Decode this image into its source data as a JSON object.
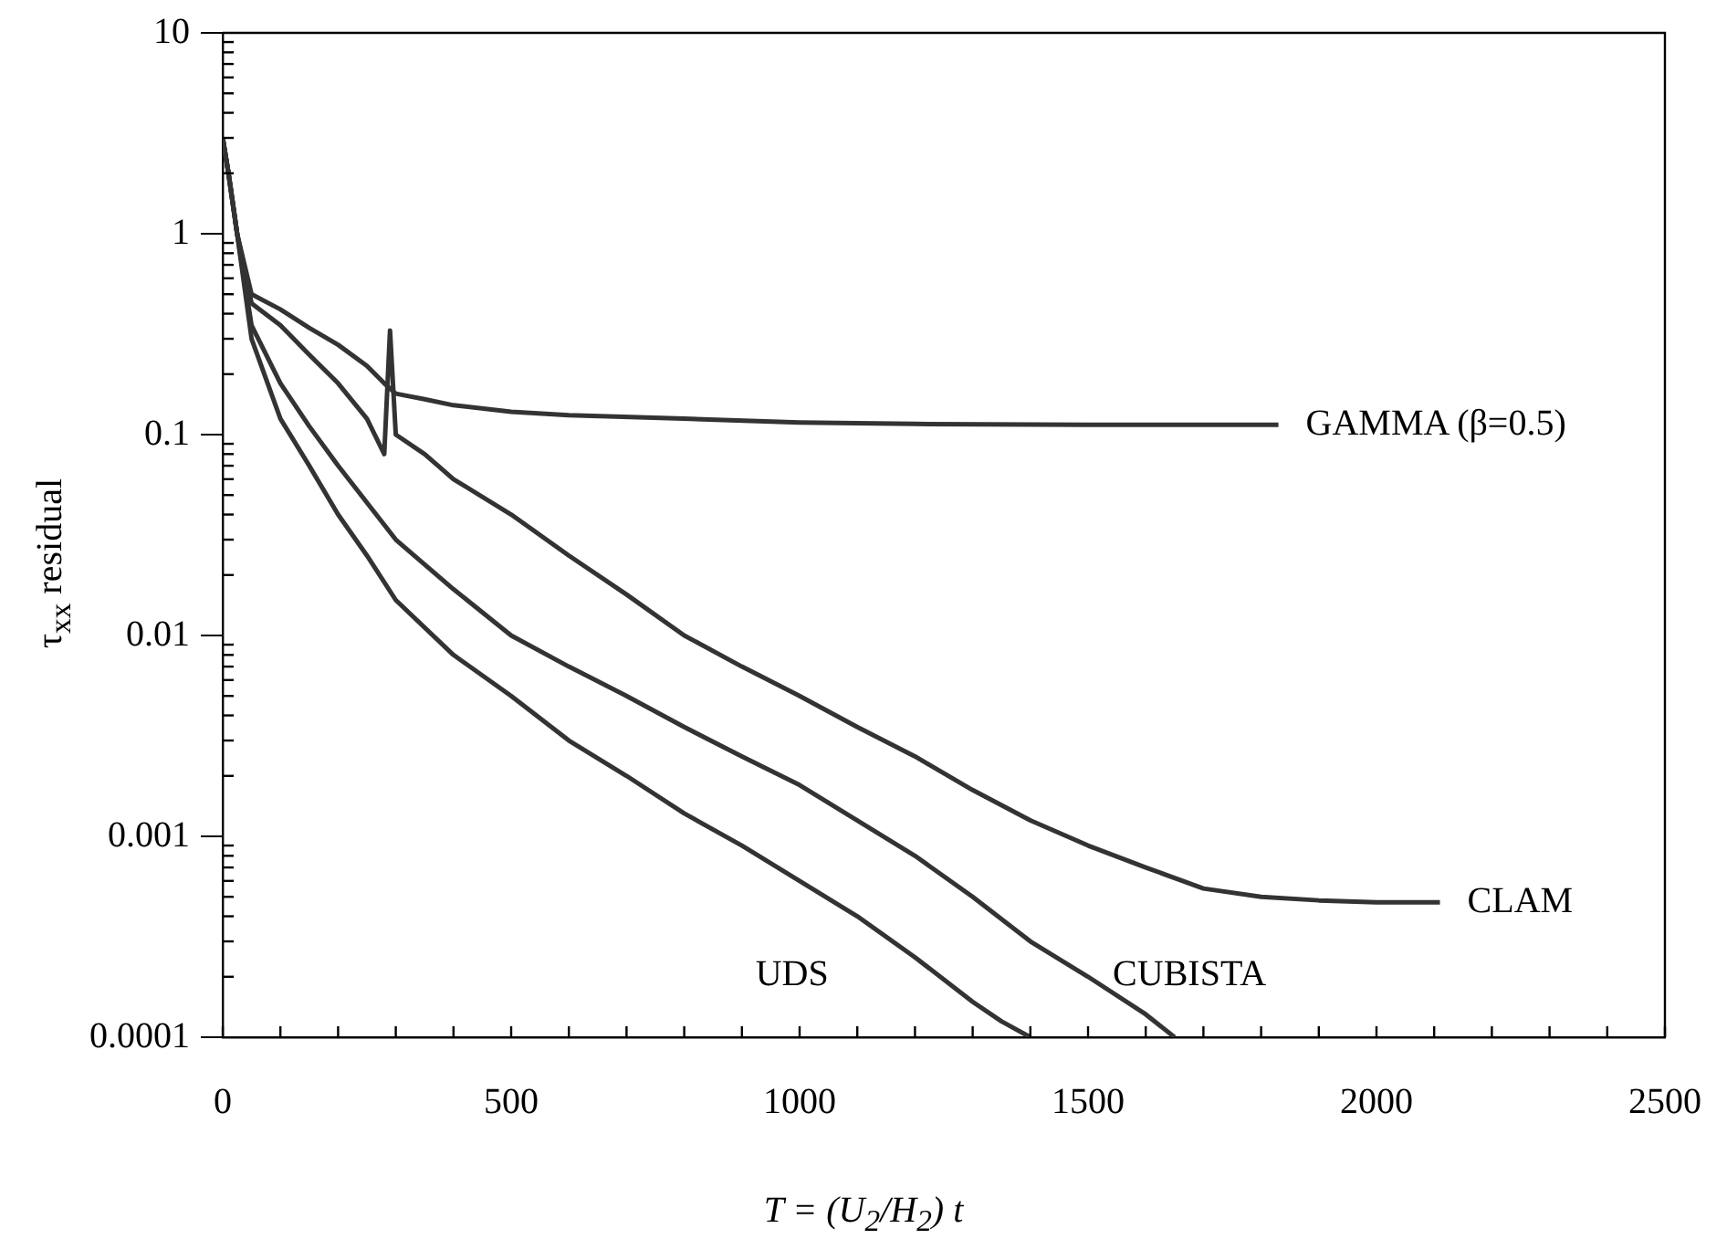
{
  "chart_data": {
    "type": "line",
    "xlabel": "T = (U$_{2}$/H$_{2}$) t",
    "ylabel": "τ$_{xx}$ residual",
    "log": "y",
    "xlim": [
      0,
      2500
    ],
    "xticks": [
      0,
      500,
      1000,
      1500,
      2000,
      2500
    ],
    "ylim": [
      0.0001,
      10
    ],
    "yticks": [
      0.0001,
      0.001,
      0.01,
      0.1,
      1,
      10
    ],
    "grid": false,
    "legend": false,
    "marker": "none",
    "line_style": "solid",
    "series": [
      {
        "name": "GAMMA (β=0.5)",
        "color": "#333333",
        "x": [
          0,
          10,
          25,
          50,
          100,
          150,
          200,
          250,
          280,
          300,
          350,
          400,
          500,
          600,
          800,
          1000,
          1200,
          1500,
          1830
        ],
        "values": [
          3,
          2,
          1,
          0.5,
          0.42,
          0.34,
          0.28,
          0.22,
          0.18,
          0.16,
          0.15,
          0.14,
          0.13,
          0.125,
          0.12,
          0.115,
          0.113,
          0.112,
          0.112
        ]
      },
      {
        "name": "CLAM",
        "color": "#333333",
        "x": [
          0,
          10,
          25,
          50,
          100,
          150,
          200,
          250,
          280,
          290,
          300,
          350,
          400,
          500,
          600,
          700,
          800,
          900,
          1000,
          1100,
          1200,
          1300,
          1400,
          1500,
          1600,
          1700,
          1800,
          1900,
          2000,
          2110
        ],
        "values": [
          3,
          2,
          1,
          0.45,
          0.35,
          0.25,
          0.18,
          0.12,
          0.08,
          0.33,
          0.1,
          0.08,
          0.06,
          0.04,
          0.025,
          0.016,
          0.01,
          0.007,
          0.005,
          0.0035,
          0.0025,
          0.0017,
          0.0012,
          0.0009,
          0.0007,
          0.00055,
          0.0005,
          0.00048,
          0.00047,
          0.00047
        ]
      },
      {
        "name": "CUBISTA",
        "color": "#333333",
        "x": [
          0,
          10,
          25,
          50,
          100,
          150,
          200,
          300,
          400,
          500,
          600,
          700,
          800,
          900,
          1000,
          1100,
          1200,
          1300,
          1400,
          1500,
          1600,
          1650
        ],
        "values": [
          3,
          2,
          1,
          0.35,
          0.18,
          0.11,
          0.07,
          0.03,
          0.017,
          0.01,
          0.007,
          0.005,
          0.0035,
          0.0025,
          0.0018,
          0.0012,
          0.0008,
          0.0005,
          0.0003,
          0.0002,
          0.00013,
          0.0001
        ]
      },
      {
        "name": "UDS",
        "color": "#333333",
        "x": [
          0,
          10,
          25,
          50,
          100,
          150,
          200,
          250,
          300,
          400,
          500,
          600,
          700,
          800,
          900,
          1000,
          1100,
          1200,
          1300,
          1350,
          1400
        ],
        "values": [
          3,
          2,
          1,
          0.3,
          0.12,
          0.07,
          0.04,
          0.025,
          0.015,
          0.008,
          0.005,
          0.003,
          0.002,
          0.0013,
          0.0009,
          0.0006,
          0.0004,
          0.00025,
          0.00015,
          0.00012,
          0.0001
        ]
      }
    ]
  }
}
